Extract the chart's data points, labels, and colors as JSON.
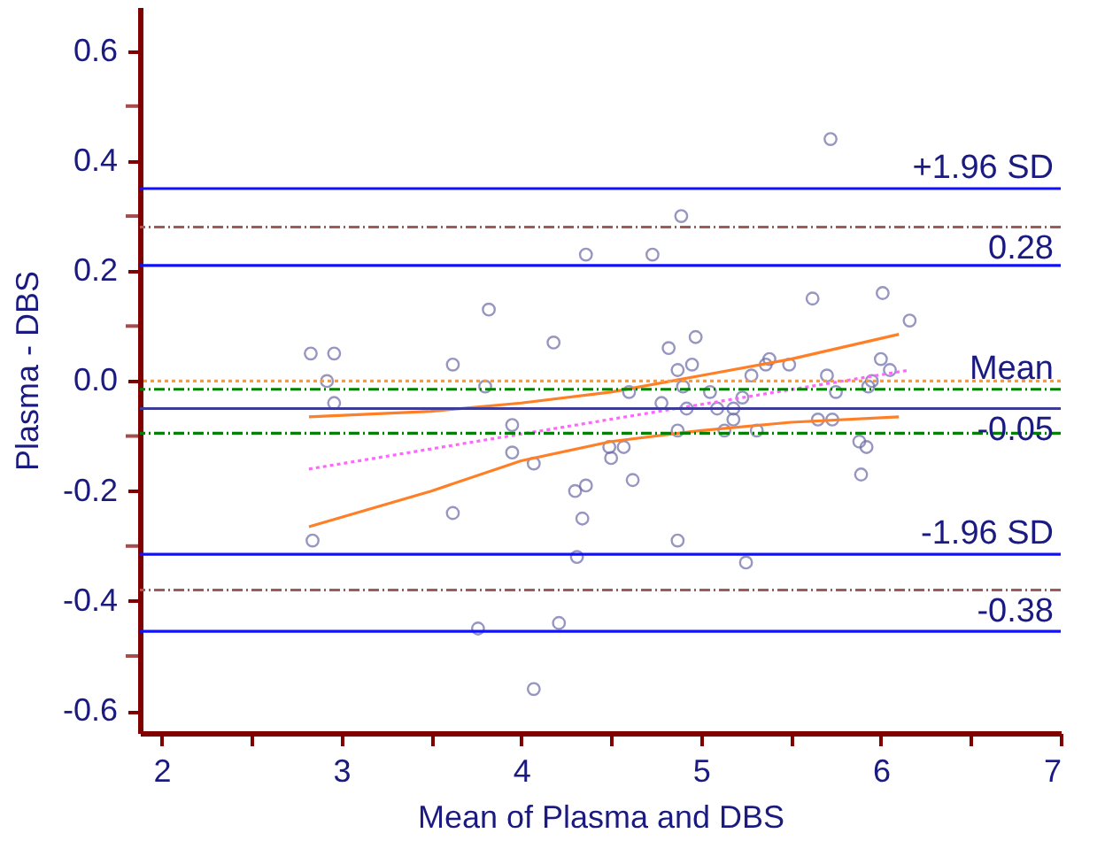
{
  "chart_data": {
    "type": "scatter",
    "xlabel": "Mean of Plasma and DBS",
    "ylabel": "Plasma - DBS",
    "xlim": [
      1.88,
      7
    ],
    "ylim": [
      -0.64,
      0.68
    ],
    "xticks": [
      2,
      {
        "value": 2.5,
        "label": null
      },
      3,
      {
        "value": 3.5,
        "label": null
      },
      4,
      {
        "value": 4.5,
        "label": null
      },
      5,
      {
        "value": 5.5,
        "label": null
      },
      6,
      {
        "value": 6.5,
        "label": null
      },
      7
    ],
    "yticks": [
      {
        "value": -0.6,
        "label": "-0.6"
      },
      {
        "value": -0.5,
        "label": null
      },
      {
        "value": -0.4,
        "label": "-0.4"
      },
      {
        "value": -0.3,
        "label": null
      },
      {
        "value": -0.2,
        "label": "-0.2"
      },
      {
        "value": -0.1,
        "label": null
      },
      {
        "value": 0,
        "label": "0.0"
      },
      {
        "value": 0.1,
        "label": null
      },
      {
        "value": 0.2,
        "label": "0.2"
      },
      {
        "value": 0.3,
        "label": null
      },
      {
        "value": 0.4,
        "label": "0.4"
      },
      {
        "value": 0.5,
        "label": null
      },
      {
        "value": 0.6,
        "label": "0.6"
      }
    ],
    "grid": false,
    "series": [
      {
        "type": "scatter",
        "marker": "circle",
        "color": "#6a6aa8",
        "x": [
          2.83,
          2.96,
          2.92,
          2.96,
          2.84,
          3.62,
          3.82,
          3.8,
          3.62,
          3.95,
          3.95,
          4.07,
          3.76,
          4.07,
          4.18,
          4.21,
          5.72,
          4.89,
          4.36,
          4.73,
          5.62,
          6.01,
          6.16,
          4.82,
          4.97,
          4.87,
          4.95,
          4.9,
          4.6,
          4.78,
          4.92,
          5.05,
          5.09,
          5.18,
          5.23,
          5.18,
          5.13,
          5.31,
          4.87,
          5.28,
          5.38,
          5.36,
          5.49,
          5.7,
          5.75,
          5.65,
          5.73,
          5.93,
          5.95,
          6.0,
          6.05,
          5.88,
          5.92,
          5.89,
          4.49,
          4.57,
          4.5,
          4.3,
          4.36,
          4.62,
          4.34,
          4.31,
          4.87,
          5.25
        ],
        "values": [
          0.05,
          0.05,
          0.0,
          -0.04,
          -0.29,
          0.03,
          0.13,
          -0.01,
          -0.24,
          -0.08,
          -0.13,
          -0.15,
          -0.45,
          -0.56,
          0.07,
          -0.44,
          0.44,
          0.3,
          0.23,
          0.23,
          0.15,
          0.16,
          0.11,
          0.06,
          0.08,
          0.02,
          0.03,
          -0.01,
          -0.02,
          -0.04,
          -0.05,
          -0.02,
          -0.05,
          -0.05,
          -0.03,
          -0.07,
          -0.09,
          -0.09,
          -0.09,
          0.01,
          0.04,
          0.03,
          0.03,
          0.01,
          -0.02,
          -0.07,
          -0.07,
          -0.01,
          0.0,
          0.04,
          0.02,
          -0.11,
          -0.12,
          -0.17,
          -0.12,
          -0.12,
          -0.14,
          -0.2,
          -0.19,
          -0.18,
          -0.25,
          -0.32,
          -0.29,
          -0.33
        ]
      },
      {
        "type": "line",
        "line_style": "dotted",
        "color": "#ff66ff",
        "x": [
          2.82,
          6.16
        ],
        "values": [
          -0.16,
          0.02
        ]
      },
      {
        "type": "line",
        "line_style": "solid",
        "color": "#ff7f27",
        "x": [
          2.82,
          3.5,
          4.0,
          4.5,
          5.0,
          5.5,
          6.1
        ],
        "values": [
          -0.065,
          -0.055,
          -0.04,
          -0.02,
          0.01,
          0.04,
          0.085
        ]
      },
      {
        "type": "line",
        "line_style": "solid",
        "color": "#ff7f27",
        "x": [
          2.82,
          3.5,
          4.0,
          4.5,
          5.0,
          5.5,
          6.1
        ],
        "values": [
          -0.265,
          -0.2,
          -0.145,
          -0.11,
          -0.09,
          -0.075,
          -0.065
        ]
      }
    ],
    "ref_lines": [
      {
        "axis": "y",
        "value": 0.35,
        "label": "+1.96 SD",
        "color": "#1010ff",
        "line_style": "solid"
      },
      {
        "axis": "y",
        "value": 0.28,
        "label": null,
        "color": "#a05a5a",
        "line_style": "dashed"
      },
      {
        "axis": "y",
        "value": 0.21,
        "label": null,
        "color": "#1010ff",
        "line_style": "solid"
      },
      {
        "axis": "y",
        "value": 0,
        "label": null,
        "color": "#ff9933",
        "line_style": "dotted"
      },
      {
        "axis": "y",
        "value": -0.015,
        "label": "Mean",
        "color": "#008000",
        "line_style": "dashed"
      },
      {
        "axis": "y",
        "value": -0.05,
        "label": null,
        "color": "#3c3c96",
        "line_style": "solid"
      },
      {
        "axis": "y",
        "value": -0.095,
        "label": null,
        "color": "#008000",
        "line_style": "dashed"
      },
      {
        "axis": "y",
        "value": -0.315,
        "label": "-1.96 SD",
        "color": "#1010ff",
        "line_style": "solid"
      },
      {
        "axis": "y",
        "value": -0.38,
        "label": null,
        "color": "#a05a5a",
        "line_style": "dashed"
      },
      {
        "axis": "y",
        "value": -0.455,
        "label": null,
        "color": "#1010ff",
        "line_style": "solid"
      }
    ],
    "annotations": [
      {
        "text": "0.28",
        "y": 0.28
      },
      {
        "text": "-0.05",
        "y": -0.05
      },
      {
        "text": "-0.38",
        "y": -0.38
      }
    ]
  }
}
